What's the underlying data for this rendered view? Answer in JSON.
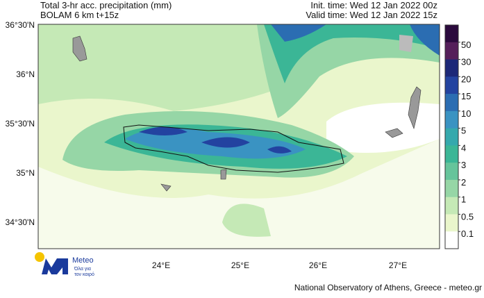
{
  "header": {
    "title_line1": "Total 3-hr acc. precipitation (mm)",
    "title_line2": "BOLAM 6 km t+15z",
    "init_time": "Init. time: Wed 12 Jan 2022 00z",
    "valid_time": "Valid time: Wed 12 Jan 2022 15z"
  },
  "map": {
    "lat_labels": [
      "36°30'N",
      "36°N",
      "35°30'N",
      "35°N",
      "34°30'N"
    ],
    "lon_labels": [
      "24°E",
      "25°E",
      "26°E",
      "27°E"
    ]
  },
  "colorbar": {
    "levels": [
      50,
      30,
      20,
      15,
      10,
      5,
      4,
      3,
      2,
      1,
      0.5,
      0.1
    ],
    "colors": [
      "#2b0a3d",
      "#551f5a",
      "#1c2878",
      "#2343a0",
      "#2b6db2",
      "#3a93c2",
      "#35a9ad",
      "#3bb696",
      "#66c49b",
      "#96d6a6",
      "#c5e9b6",
      "#eaf6cc",
      "#ffffff"
    ]
  },
  "logo": {
    "name": "Meteo",
    "tagline1": "Όλα για",
    "tagline2": "τον καιρό"
  },
  "footer": {
    "credit": "National Observatory of Athens, Greece - meteo.gr"
  }
}
